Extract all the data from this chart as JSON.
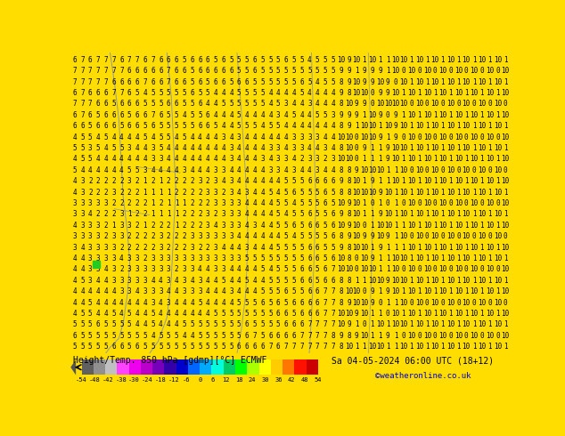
{
  "title_left": "Height/Temp. 850 hPa [gdmp][°C] ECMWF",
  "title_right": "Sa 04-05-2024 06:00 UTC (18+12)",
  "copyright": "©weatheronline.co.uk",
  "colorbar_ticks": [
    "-54",
    "-48",
    "-42",
    "-38",
    "-30",
    "-24",
    "-18",
    "-12",
    "-6",
    "0",
    "6",
    "12",
    "18",
    "24",
    "30",
    "36",
    "42",
    "48",
    "54"
  ],
  "colorbar_colors": [
    "#606060",
    "#909090",
    "#c0c0c0",
    "#ff44ff",
    "#ee00ee",
    "#bb00cc",
    "#7700bb",
    "#3300aa",
    "#0000cc",
    "#0066ff",
    "#00aaff",
    "#00ffdd",
    "#00cc66",
    "#00ff00",
    "#aaff00",
    "#ffff00",
    "#ffcc00",
    "#ff7700",
    "#ff1100",
    "#cc0000"
  ],
  "bg_color": "#ffdd00",
  "fig_width": 6.34,
  "fig_height": 4.9,
  "dpi": 100,
  "font_color": "#000000",
  "contour_color": "#7788cc",
  "font_size": 5.5
}
